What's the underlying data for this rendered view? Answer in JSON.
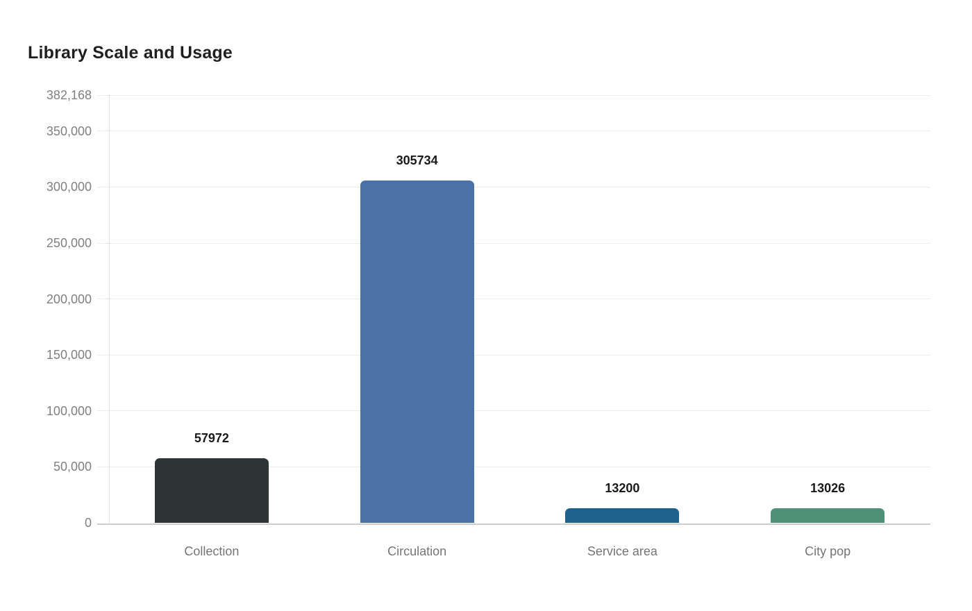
{
  "chart_data": {
    "type": "bar",
    "title": "Library Scale and Usage",
    "categories": [
      "Collection",
      "Circulation",
      "Service area",
      "City pop"
    ],
    "values": [
      57972,
      305734,
      13200,
      13026
    ],
    "value_labels": [
      "57972",
      "305734",
      "13200",
      "13026"
    ],
    "bar_colors": [
      "#2c3436",
      "#4b71a6",
      "#1f618d",
      "#4f9079"
    ],
    "xlabel": "",
    "ylabel": "",
    "ylim": [
      0,
      382168
    ],
    "yticks": [
      {
        "value": 382168,
        "label": "382,168"
      },
      {
        "value": 350000,
        "label": "350,000"
      },
      {
        "value": 300000,
        "label": "300,000"
      },
      {
        "value": 250000,
        "label": "250,000"
      },
      {
        "value": 200000,
        "label": "200,000"
      },
      {
        "value": 150000,
        "label": "150,000"
      },
      {
        "value": 100000,
        "label": "100,000"
      },
      {
        "value": 50000,
        "label": "50,000"
      },
      {
        "value": 0,
        "label": "0"
      }
    ],
    "grid": true,
    "legend": false,
    "colors": {
      "title_text": "#1f1f1f",
      "tick_label": "#808080",
      "category_label": "#757575",
      "value_label": "#1a1a1a",
      "gridline": "#ebebeb",
      "baseline": "#cccccc",
      "axis_dotted": "#cccccc",
      "background": "#ffffff"
    }
  }
}
